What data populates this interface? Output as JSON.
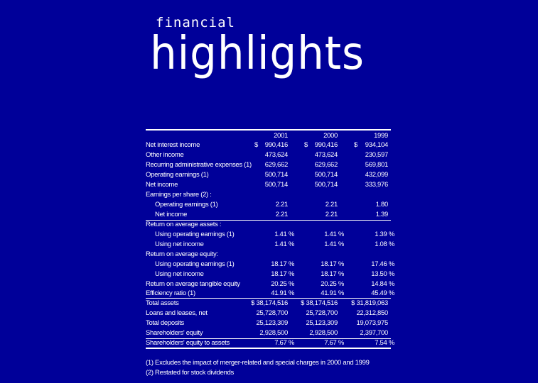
{
  "title": {
    "small": "financial",
    "large": "highlights"
  },
  "table": {
    "headers": [
      "2001",
      "2000",
      "1999"
    ],
    "rows": [
      {
        "label": "Net interest income",
        "indent": false,
        "dollar": true,
        "values": [
          "990,416",
          "990,416",
          "934,104"
        ]
      },
      {
        "label": "Other income",
        "indent": false,
        "values": [
          "473,624",
          "473,624",
          "230,597"
        ]
      },
      {
        "label": "Recurring administrative expenses (1)",
        "indent": false,
        "values": [
          "629,662",
          "629,662",
          "569,801"
        ]
      },
      {
        "label": "Operating earnings (1)",
        "indent": false,
        "values": [
          "500,714",
          "500,714",
          "432,099"
        ]
      },
      {
        "label": "Net income",
        "indent": false,
        "values": [
          "500,714",
          "500,714",
          "333,976"
        ]
      },
      {
        "label": "Earnings per share (2) :",
        "indent": false,
        "values": [
          "",
          "",
          ""
        ]
      },
      {
        "label": "Operating earnings (1)",
        "indent": true,
        "values": [
          "2.21",
          "2.21",
          "1.80"
        ]
      },
      {
        "label": "Net income",
        "indent": true,
        "values": [
          "2.21",
          "2.21",
          "1.39"
        ]
      },
      {
        "label": "Return on average assets :",
        "indent": false,
        "values": [
          "",
          "",
          ""
        ]
      },
      {
        "label": "Using operating earnings (1)",
        "indent": true,
        "values": [
          "1.41 %",
          "1.41 %",
          "1.39 %"
        ]
      },
      {
        "label": "Using net income",
        "indent": true,
        "values": [
          "1.41 %",
          "1.41 %",
          "1.08 %"
        ]
      },
      {
        "label": "Return on average equity:",
        "indent": false,
        "values": [
          "",
          "",
          ""
        ]
      },
      {
        "label": "Using operating earnings (1)",
        "indent": true,
        "values": [
          "18.17 %",
          "18.17 %",
          "17.46 %"
        ]
      },
      {
        "label": "Using net income",
        "indent": true,
        "values": [
          "18.17 %",
          "18.17 %",
          "13.50 %"
        ]
      },
      {
        "label": "Return on average tangible equity",
        "indent": false,
        "values": [
          "20.25 %",
          "20.25 %",
          "14.84 %"
        ]
      },
      {
        "label": "Efficiency ratio (1)",
        "indent": false,
        "values": [
          "41.91 %",
          "41.91 %",
          "45.49 %"
        ]
      },
      {
        "label": "Total assets",
        "indent": false,
        "values": [
          "$ 38,174,516",
          "$ 38,174,516",
          "$ 31,819,063"
        ]
      },
      {
        "label": "Loans and leases, net",
        "indent": false,
        "values": [
          "25,728,700",
          "25,728,700",
          "22,312,850"
        ]
      },
      {
        "label": "Total deposits",
        "indent": false,
        "values": [
          "25,123,309",
          "25,123,309",
          "19,073,975"
        ]
      },
      {
        "label": "Shareholders' equity",
        "indent": false,
        "values": [
          "2,928,500",
          "2,928,500",
          "2,397,700"
        ]
      },
      {
        "label": "Shareholders' equity to assets",
        "indent": false,
        "values": [
          "7.67 %",
          "7.67 %",
          "7.54 %"
        ]
      }
    ],
    "currency_symbol": "$"
  },
  "footnotes": [
    "(1) Excludes the impact of merger-related and special charges in 2000 and 1999",
    "(2) Restated for stock dividends"
  ],
  "colors": {
    "background": "#000099",
    "text": "#ffffff"
  }
}
